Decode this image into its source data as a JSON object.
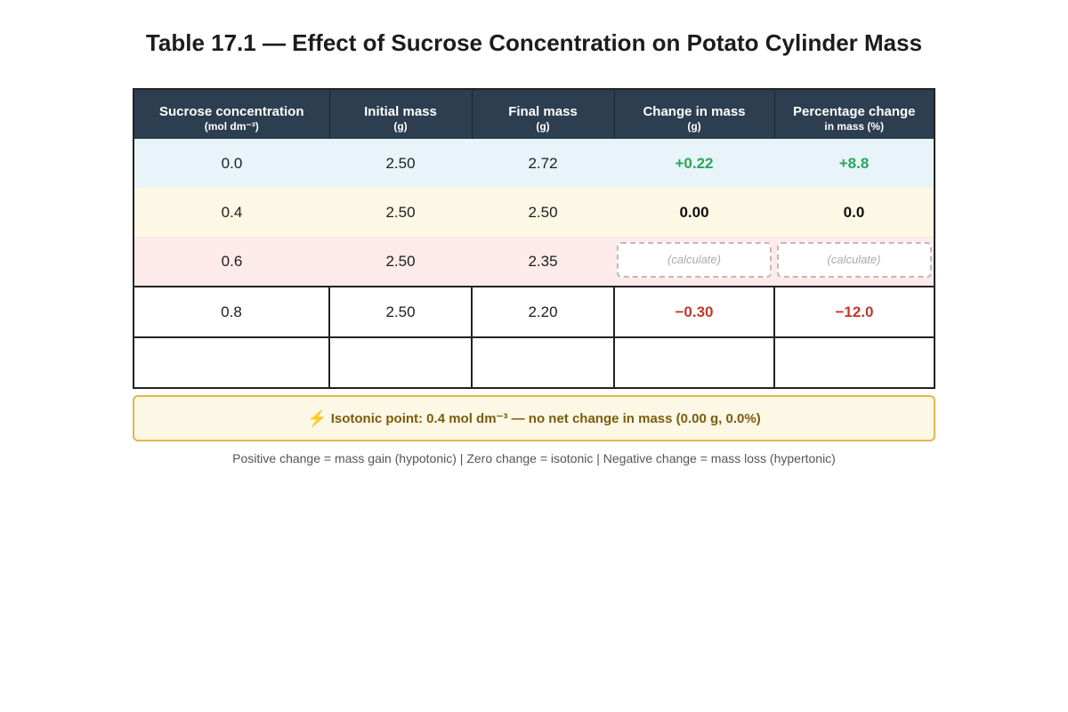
{
  "title": "Table 17.1 — Effect of Sucrose Concentration on Potato Cylinder Mass",
  "table": {
    "headers": [
      {
        "main": "Sucrose concentration",
        "sub": "(mol dm⁻³)"
      },
      {
        "main": "Initial mass",
        "sub": "(g)"
      },
      {
        "main": "Final mass",
        "sub": "(g)"
      },
      {
        "main": "Change in mass",
        "sub": "(g)"
      },
      {
        "main": "Percentage change",
        "sub": "in mass (%)"
      }
    ],
    "rows": [
      {
        "concentration": "0.0",
        "initial": "2.50",
        "final": "2.72",
        "change": "+0.22",
        "percent": "+8.8"
      },
      {
        "concentration": "0.4",
        "initial": "2.50",
        "final": "2.50",
        "change": "0.00",
        "percent": "0.0"
      },
      {
        "concentration": "0.6",
        "initial": "2.50",
        "final": "2.35",
        "change": "(calculate)",
        "percent": "(calculate)"
      },
      {
        "concentration": "0.8",
        "initial": "2.50",
        "final": "2.20",
        "change": "−0.30",
        "percent": "−12.0"
      },
      {
        "concentration": "",
        "initial": "",
        "final": "",
        "change": "",
        "percent": ""
      }
    ]
  },
  "isotonic_note": {
    "icon": "lightning-bolt-icon",
    "glyph": "⚡",
    "text": "Isotonic point: 0.4 mol dm⁻³ — no net change in mass (0.00 g, 0.0%)"
  },
  "footnote": "Positive change = mass gain (hypotonic) | Zero change = isotonic | Negative change = mass loss (hypertonic)",
  "colors": {
    "header_bg": "#2c3e50",
    "row_hypotonic_bg": "#e8f4fa",
    "row_isotonic_bg": "#fdf8e5",
    "row_hypertonic_bg": "#fcebea",
    "positive_text": "#2aa65a",
    "negative_text": "#c0392b",
    "note_border": "#e2b84a",
    "note_text": "#7a5c0c"
  }
}
